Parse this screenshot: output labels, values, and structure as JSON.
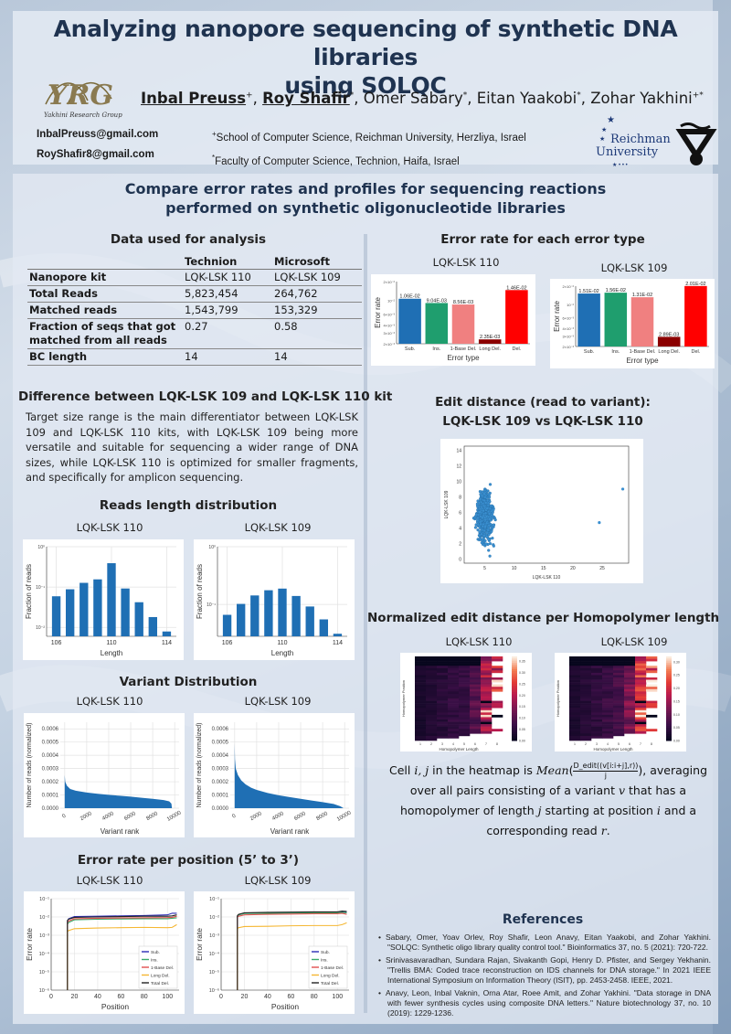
{
  "header": {
    "title_line1": "Analyzing nanopore sequencing of synthetic DNA libraries",
    "title_line2": "using SOLQC",
    "logo_left_label": "Yakhini Research Group",
    "logo_left_mark": "YRG",
    "authors": [
      {
        "name": "Inbal Preuss",
        "sup": "+",
        "underlined": true
      },
      {
        "name": "Roy Shafir",
        "sup": "*",
        "underlined": true
      },
      {
        "name": "Omer Sabary",
        "sup": "*",
        "underlined": false
      },
      {
        "name": "Eitan Yaakobi",
        "sup": "*",
        "underlined": false
      },
      {
        "name": "Zohar Yakhini",
        "sup": "+*",
        "underlined": false
      }
    ],
    "emails": [
      "InbalPreuss@gmail.com",
      "RoyShafir8@gmail.com"
    ],
    "affiliations": [
      {
        "sup": "+",
        "text": "School of Computer Science, Reichman University, Herzliya, Israel"
      },
      {
        "sup": "*",
        "text": "Faculty of Computer Science, Technion, Haifa, Israel"
      }
    ],
    "logo_right_1_line1": "Reichman",
    "logo_right_1_line2": "University",
    "logo_right_2": "Technion logo"
  },
  "main": {
    "subtitle_line1": "Compare error rates and profiles for sequencing reactions",
    "subtitle_line2": "performed on synthetic oligonucleotide libraries",
    "data_table": {
      "title": "Data used for analysis",
      "columns": [
        "",
        "Technion",
        "Microsoft"
      ],
      "rows": [
        [
          "Nanopore kit",
          "LQK-LSK 110",
          "LQK-LSK 109"
        ],
        [
          "Total Reads",
          "5,823,454",
          "264,762"
        ],
        [
          "Matched reads",
          "1,543,799",
          "153,329"
        ],
        [
          "Fraction of seqs that got matched from all reads",
          "0.27",
          "0.58"
        ],
        [
          "BC length",
          "14",
          "14"
        ]
      ]
    },
    "difference": {
      "title": "Difference between LQK-LSK 109 and LQK-LSK 110 kit",
      "text": "Target size range is the main differentiator between LQK-LSK 109 and LQK-LSK 110 kits, with LQK-LSK 109 being more versatile and suitable for sequencing a wider range of DNA sizes, while LQK-LSK 110 is optimized for smaller fragments, and specifically for amplicon sequencing."
    },
    "sections": {
      "reads_length": "Reads length distribution",
      "variant_dist": "Variant Distribution",
      "error_position": "Error rate per position (5’ to 3’)",
      "error_type": "Error rate for each error type",
      "edit_distance_line1": "Edit distance (read to variant):",
      "edit_distance_line2": "LQK-LSK 109 vs LQK-LSK 110",
      "homopolymer": "Normalized edit distance per Homopolymer length"
    },
    "kits": {
      "k110": "LQK-LSK 110",
      "k109": "LQK-LSK 109"
    },
    "formula": {
      "pre": "Cell ",
      "ij": "i, j",
      "mid": " in the heatmap is ",
      "mean": "Mean",
      "numerator": "D_edit((v[i:i+j],r))",
      "denominator": "j",
      "post": ", averaging over all pairs consisting of a variant ",
      "v": "v",
      "post2": " that has a homopolymer of length ",
      "j": "j",
      "post3": " starting at position ",
      "i": "i",
      "post4": " and a corresponding read ",
      "r": "r",
      "end": "."
    },
    "references": {
      "title": "References",
      "items": [
        "Sabary, Omer, Yoav Orlev, Roy Shafir, Leon Anavy, Eitan Yaakobi, and Zohar Yakhini. \"SOLQC: Synthetic oligo library quality control tool.\" Bioinformatics 37, no. 5 (2021): 720-722.",
        "Srinivasavaradhan, Sundara Rajan, Sivakanth Gopi, Henry D. Pfister, and Sergey Yekhanin. \"Trellis BMA: Coded trace reconstruction on IDS channels for DNA storage.\" In 2021 IEEE International Symposium on Information Theory (ISIT), pp. 2453-2458. IEEE, 2021.",
        "Anavy, Leon, Inbal Vaknin, Orna Atar, Roee Amit, and Zohar Yakhini. \"Data storage in DNA with fewer synthesis cycles using composite DNA letters.\" Nature biotechnology 37, no. 10 (2019): 1229-1236."
      ]
    }
  },
  "chart_data": [
    {
      "id": "error_type_110",
      "type": "bar",
      "title": "LQK-LSK 110",
      "categories": [
        "Sub.",
        "Ins.",
        "1-Base Del.",
        "Long Del.",
        "Del."
      ],
      "values": [
        0.0106,
        0.00904,
        0.00856,
        0.00235,
        0.0146
      ],
      "labels": [
        "1.06E-02",
        "9.04E-03",
        "8.56E-03",
        "2.35E-03",
        "1.46E-02"
      ],
      "colors": [
        "#1f6fb4",
        "#1f9e6e",
        "#f08080",
        "#8b0000",
        "#ff0000"
      ],
      "xlabel": "Error type",
      "ylabel": "Error rate",
      "yscale": "log",
      "ylim": [
        0.002,
        0.02
      ],
      "yticks": [
        0.002,
        0.003,
        0.004,
        0.006,
        0.01,
        0.02
      ],
      "ytick_labels": [
        "2×10⁻³",
        "3×10⁻³",
        "4×10⁻³",
        "6×10⁻³",
        "10⁻²",
        "2×10⁻²"
      ]
    },
    {
      "id": "error_type_109",
      "type": "bar",
      "title": "LQK-LSK 109",
      "categories": [
        "Sub.",
        "Ins.",
        "1-Base Del.",
        "Long Del.",
        "Del."
      ],
      "values": [
        0.0151,
        0.0156,
        0.0131,
        0.00289,
        0.0201
      ],
      "labels": [
        "1.51E-02",
        "1.56E-02",
        "1.31E-02",
        "2.89E-03",
        "2.01E-02"
      ],
      "colors": [
        "#1f6fb4",
        "#1f9e6e",
        "#f08080",
        "#8b0000",
        "#ff0000"
      ],
      "xlabel": "Error type",
      "ylabel": "Error rate",
      "yscale": "log",
      "ylim": [
        0.002,
        0.02
      ],
      "yticks": [
        0.002,
        0.003,
        0.004,
        0.006,
        0.01,
        0.02
      ],
      "ytick_labels": [
        "2×10⁻³",
        "3×10⁻³",
        "4×10⁻³",
        "6×10⁻³",
        "10⁻²",
        "2×10⁻²"
      ]
    },
    {
      "id": "reads_len_110",
      "type": "bar",
      "title": "LQK-LSK 110",
      "categories": [
        106,
        107,
        108,
        109,
        110,
        111,
        112,
        113,
        114
      ],
      "values": [
        0.059,
        0.088,
        0.127,
        0.155,
        0.39,
        0.092,
        0.042,
        0.018,
        0.0079
      ],
      "xlabel": "Length",
      "ylabel": "Fraction of reads",
      "yscale": "log",
      "ylim": [
        0.006,
        1
      ],
      "yticks": [
        0.01,
        0.1,
        1
      ],
      "ytick_labels": [
        "10⁻²",
        "10⁻¹",
        "10⁰"
      ],
      "xticks": [
        106,
        110,
        114
      ],
      "color": "#1f6fb4",
      "grid": true
    },
    {
      "id": "reads_len_109",
      "type": "bar",
      "title": "LQK-LSK 109",
      "categories": [
        106,
        107,
        108,
        109,
        110,
        111,
        112,
        113,
        114
      ],
      "values": [
        0.066,
        0.102,
        0.143,
        0.176,
        0.188,
        0.14,
        0.092,
        0.055,
        0.031
      ],
      "xlabel": "Length",
      "ylabel": "Fraction of reads",
      "yscale": "log",
      "ylim": [
        0.028,
        1
      ],
      "yticks": [
        0.1,
        1
      ],
      "ytick_labels": [
        "10⁻¹",
        "10⁰"
      ],
      "xticks": [
        106,
        110,
        114
      ],
      "color": "#1f6fb4",
      "grid": true
    },
    {
      "id": "variant_110",
      "type": "area",
      "title": "LQK-LSK 110",
      "x": [
        0,
        50,
        200,
        500,
        1000,
        2000,
        3000,
        4000,
        5000,
        6000,
        7000,
        8000,
        9000,
        9500,
        9700,
        9750
      ],
      "y": [
        0.00025,
        0.0002,
        0.00017,
        0.000145,
        0.000132,
        0.000118,
        0.000109,
        0.000101,
        9.4e-05,
        8.7e-05,
        7.9e-05,
        7.1e-05,
        6.1e-05,
        5.2e-05,
        3.5e-05,
        0.0
      ],
      "xlabel": "Variant rank",
      "ylabel": "Number of reads (normalized)",
      "xlim": [
        -400,
        10400
      ],
      "ylim": [
        0,
        0.00065
      ],
      "xticks": [
        0,
        2000,
        4000,
        6000,
        8000,
        10000
      ],
      "yticks": [
        0.0,
        0.0001,
        0.0002,
        0.0003,
        0.0004,
        0.0005,
        0.0006
      ],
      "ytick_labels": [
        "0.0000",
        "0.0001",
        "0.0002",
        "0.0003",
        "0.0004",
        "0.0005",
        "0.0006"
      ],
      "color": "#1f6fb4",
      "grid": true
    },
    {
      "id": "variant_109",
      "type": "area",
      "title": "LQK-LSK 109",
      "x": [
        0,
        30,
        100,
        300,
        600,
        1000,
        1500,
        2000,
        3000,
        4000,
        5000,
        6000,
        7000,
        8000,
        9000,
        9600,
        9900
      ],
      "y": [
        0.00049,
        0.00037,
        0.0003,
        0.00025,
        0.00021,
        0.00018,
        0.000155,
        0.000138,
        0.000115,
        9.8e-05,
        8.4e-05,
        7.1e-05,
        5.8e-05,
        4.6e-05,
        3.2e-05,
        1.5e-05,
        0.0
      ],
      "xlabel": "Variant rank",
      "ylabel": "Number of reads (normalized)",
      "xlim": [
        -400,
        10400
      ],
      "ylim": [
        0,
        0.00065
      ],
      "xticks": [
        0,
        2000,
        4000,
        6000,
        8000,
        10000
      ],
      "yticks": [
        0.0,
        0.0001,
        0.0002,
        0.0003,
        0.0004,
        0.0005,
        0.0006
      ],
      "ytick_labels": [
        "0.0000",
        "0.0001",
        "0.0002",
        "0.0003",
        "0.0004",
        "0.0005",
        "0.0006"
      ],
      "color": "#1f6fb4",
      "grid": true
    },
    {
      "id": "pos_110",
      "type": "line",
      "title": "LQK-LSK 110",
      "xlabel": "Position",
      "ylabel": "Error rate",
      "yscale": "log",
      "xlim": [
        0,
        110
      ],
      "ylim": [
        1e-06,
        0.1
      ],
      "xticks": [
        0,
        20,
        40,
        60,
        80,
        100
      ],
      "yticks": [
        1e-06,
        1e-05,
        0.0001,
        0.001,
        0.01,
        0.1
      ],
      "ytick_labels": [
        "10⁻⁶",
        "10⁻⁵",
        "10⁻⁴",
        "10⁻³",
        "10⁻²",
        "10⁻¹"
      ],
      "start_position": 14,
      "series": [
        {
          "name": "Sub.",
          "color": "#2b2bb5",
          "x": [
            14,
            15,
            20,
            40,
            60,
            80,
            100,
            104,
            108
          ],
          "y": [
            0.006,
            0.008,
            0.0105,
            0.011,
            0.0115,
            0.012,
            0.013,
            0.016,
            0.016
          ]
        },
        {
          "name": "Ins.",
          "color": "#3aab6a",
          "x": [
            14,
            15,
            20,
            40,
            60,
            80,
            100,
            104,
            108
          ],
          "y": [
            0.004,
            0.005,
            0.007,
            0.0075,
            0.0078,
            0.008,
            0.008,
            0.0085,
            0.009
          ]
        },
        {
          "name": "1-Base Del.",
          "color": "#e05050",
          "x": [
            14,
            15,
            20,
            40,
            60,
            80,
            100,
            104,
            108
          ],
          "y": [
            0.005,
            0.006,
            0.008,
            0.0085,
            0.0088,
            0.009,
            0.0092,
            0.0095,
            0.011
          ]
        },
        {
          "name": "Long Del.",
          "color": "#f5b733",
          "x": [
            14,
            15,
            20,
            40,
            60,
            80,
            100,
            104,
            108
          ],
          "y": [
            0.0016,
            0.0018,
            0.0023,
            0.0025,
            0.0026,
            0.0027,
            0.0026,
            0.0027,
            0.0038
          ]
        },
        {
          "name": "Total Del.",
          "color": "#222222",
          "x": [
            14,
            15,
            20,
            40,
            60,
            80,
            100,
            104,
            108
          ],
          "y": [
            0.0065,
            0.0075,
            0.0095,
            0.01,
            0.0105,
            0.011,
            0.011,
            0.0115,
            0.013
          ]
        }
      ],
      "legend": "bottom-right"
    },
    {
      "id": "pos_109",
      "type": "line",
      "title": "LQK-LSK 109",
      "xlabel": "Position",
      "ylabel": "Error rate",
      "yscale": "log",
      "xlim": [
        0,
        110
      ],
      "ylim": [
        1e-06,
        0.1
      ],
      "xticks": [
        0,
        20,
        40,
        60,
        80,
        100
      ],
      "yticks": [
        1e-06,
        1e-05,
        0.0001,
        0.001,
        0.01,
        0.1
      ],
      "ytick_labels": [
        "10⁻⁶",
        "10⁻⁵",
        "10⁻⁴",
        "10⁻³",
        "10⁻²",
        "10⁻¹"
      ],
      "start_position": 14,
      "series": [
        {
          "name": "Sub.",
          "color": "#2b2bb5",
          "x": [
            14,
            15,
            20,
            40,
            60,
            80,
            100,
            104,
            108
          ],
          "y": [
            0.011,
            0.013,
            0.016,
            0.017,
            0.0175,
            0.018,
            0.018,
            0.02,
            0.019
          ]
        },
        {
          "name": "Ins.",
          "color": "#3aab6a",
          "x": [
            14,
            15,
            20,
            40,
            60,
            80,
            100,
            104,
            108
          ],
          "y": [
            0.011,
            0.013,
            0.0155,
            0.016,
            0.0165,
            0.017,
            0.017,
            0.018,
            0.017
          ]
        },
        {
          "name": "1-Base Del.",
          "color": "#e05050",
          "x": [
            14,
            15,
            20,
            40,
            60,
            80,
            100,
            104,
            108
          ],
          "y": [
            0.01,
            0.011,
            0.013,
            0.014,
            0.0145,
            0.015,
            0.015,
            0.016,
            0.014
          ]
        },
        {
          "name": "Long Del.",
          "color": "#f5b733",
          "x": [
            14,
            15,
            20,
            40,
            60,
            80,
            100,
            104,
            108
          ],
          "y": [
            0.0023,
            0.0026,
            0.003,
            0.0031,
            0.0033,
            0.0034,
            0.0034,
            0.0038,
            0.0048
          ]
        },
        {
          "name": "Total Del.",
          "color": "#222222",
          "x": [
            14,
            15,
            20,
            40,
            60,
            80,
            100,
            104,
            108
          ],
          "y": [
            0.012,
            0.014,
            0.017,
            0.018,
            0.0185,
            0.019,
            0.019,
            0.021,
            0.02
          ]
        }
      ],
      "legend": "bottom-right"
    },
    {
      "id": "edit_scatter",
      "type": "scatter",
      "xlabel": "LQK-LSK 110",
      "ylabel": "LQK-LSK 109",
      "xlim": [
        1.5,
        29.5
      ],
      "ylim": [
        -0.5,
        14.5
      ],
      "xticks": [
        5,
        10,
        15,
        20,
        25
      ],
      "yticks": [
        0,
        2,
        4,
        6,
        8,
        10,
        12,
        14
      ],
      "cluster": {
        "x_center": 5,
        "x_range": [
          2.5,
          9
        ],
        "y_center": 5.5,
        "y_range": [
          0,
          14
        ],
        "approx_points": 10000
      },
      "outliers": [
        [
          24.5,
          4.7
        ],
        [
          28.5,
          9.0
        ]
      ],
      "color": "#3a8fd0"
    },
    {
      "id": "homopolymer_110",
      "type": "heatmap",
      "title": "LQK-LSK 110",
      "xlabel": "Homopolymer Length",
      "ylabel": "Homopolymer Position",
      "x": [
        1,
        2,
        3,
        4,
        5,
        6,
        7,
        8
      ],
      "colorbar": [
        0.0,
        0.05,
        0.1,
        0.15,
        0.2,
        0.25,
        0.3,
        0.35
      ],
      "colormap": "rocket",
      "typical_by_length": [
        0.03,
        0.04,
        0.05,
        0.06,
        0.07,
        0.1,
        0.18,
        0.22
      ]
    },
    {
      "id": "homopolymer_109",
      "type": "heatmap",
      "title": "LQK-LSK 109",
      "xlabel": "Homopolymer Length",
      "ylabel": "Homopolymer Position",
      "x": [
        1,
        2,
        3,
        4,
        5,
        6,
        7,
        8
      ],
      "colorbar": [
        0.0,
        0.05,
        0.1,
        0.15,
        0.2,
        0.25,
        0.3
      ],
      "colormap": "rocket",
      "typical_by_length": [
        0.03,
        0.04,
        0.05,
        0.06,
        0.08,
        0.12,
        0.2,
        0.24
      ]
    }
  ]
}
